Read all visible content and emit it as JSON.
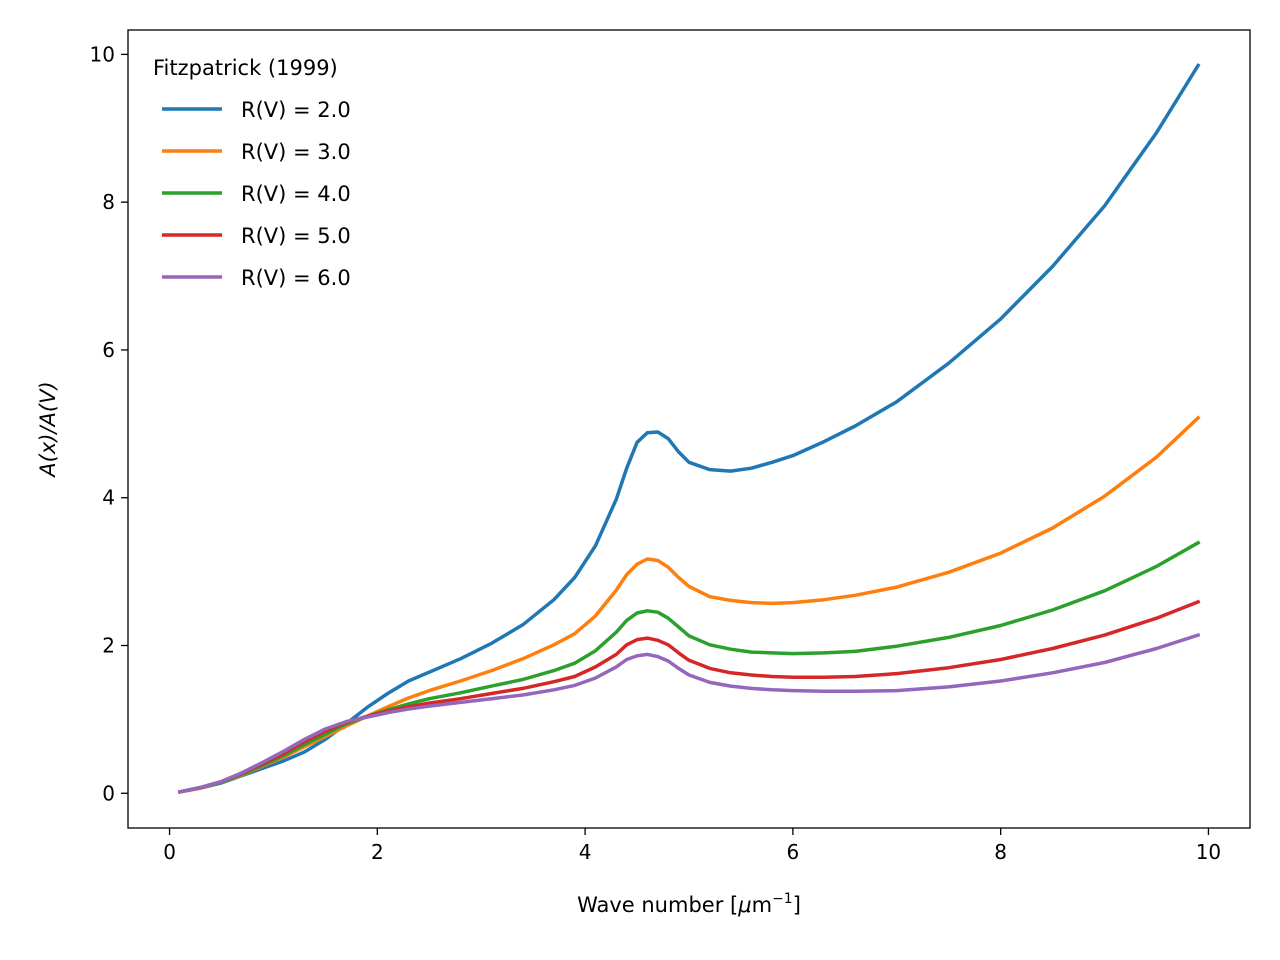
{
  "chart_data": {
    "type": "line",
    "xlabel": "Wave number",
    "xlabel_unit_prefix": "[",
    "xlabel_unit_mu": "μ",
    "xlabel_unit_m": "m",
    "xlabel_unit_exp": "−1",
    "xlabel_unit_suffix": "]",
    "ylabel": "A(x)/A(V)",
    "xlim": [
      -0.4,
      10.4
    ],
    "ylim": [
      -0.47,
      10.33
    ],
    "xticks": [
      0,
      2,
      4,
      6,
      8,
      10
    ],
    "xtick_labels": [
      "0",
      "2",
      "4",
      "6",
      "8",
      "10"
    ],
    "yticks": [
      0,
      2,
      4,
      6,
      8,
      10
    ],
    "ytick_labels": [
      "0",
      "2",
      "4",
      "6",
      "8",
      "10"
    ],
    "grid": false,
    "legend": {
      "title": "Fitzpatrick (1999)",
      "placement": "top-left"
    },
    "x": [
      0.1,
      0.3,
      0.5,
      0.7,
      0.9,
      1.1,
      1.3,
      1.5,
      1.7,
      1.9,
      2.1,
      2.3,
      2.5,
      2.8,
      3.1,
      3.4,
      3.7,
      3.9,
      4.1,
      4.3,
      4.4,
      4.5,
      4.6,
      4.7,
      4.8,
      4.9,
      5.0,
      5.2,
      5.4,
      5.6,
      5.8,
      6.0,
      6.3,
      6.6,
      7.0,
      7.5,
      8.0,
      8.5,
      9.0,
      9.5,
      9.9
    ],
    "series": [
      {
        "name": "R(V) = 2.0",
        "color": "#1f77b4",
        "values": [
          0.02,
          0.07,
          0.14,
          0.24,
          0.34,
          0.44,
          0.56,
          0.73,
          0.94,
          1.16,
          1.35,
          1.52,
          1.64,
          1.82,
          2.03,
          2.28,
          2.62,
          2.92,
          3.35,
          3.98,
          4.4,
          4.75,
          4.88,
          4.89,
          4.8,
          4.62,
          4.48,
          4.38,
          4.36,
          4.4,
          4.48,
          4.57,
          4.76,
          4.97,
          5.3,
          5.82,
          6.42,
          7.13,
          7.95,
          8.94,
          9.85
        ]
      },
      {
        "name": "R(V) = 3.0",
        "color": "#ff7f0e",
        "values": [
          0.02,
          0.07,
          0.15,
          0.25,
          0.37,
          0.49,
          0.63,
          0.77,
          0.91,
          1.04,
          1.17,
          1.29,
          1.39,
          1.52,
          1.66,
          1.82,
          2.01,
          2.16,
          2.4,
          2.75,
          2.96,
          3.1,
          3.17,
          3.15,
          3.06,
          2.92,
          2.8,
          2.66,
          2.61,
          2.58,
          2.57,
          2.58,
          2.62,
          2.68,
          2.79,
          2.99,
          3.25,
          3.59,
          4.02,
          4.55,
          5.08
        ]
      },
      {
        "name": "R(V) = 4.0",
        "color": "#2ca02c",
        "values": [
          0.02,
          0.08,
          0.15,
          0.26,
          0.38,
          0.51,
          0.66,
          0.8,
          0.94,
          1.04,
          1.13,
          1.21,
          1.28,
          1.36,
          1.45,
          1.54,
          1.66,
          1.76,
          1.93,
          2.18,
          2.34,
          2.44,
          2.47,
          2.45,
          2.37,
          2.25,
          2.13,
          2.01,
          1.95,
          1.91,
          1.9,
          1.89,
          1.9,
          1.92,
          1.99,
          2.11,
          2.27,
          2.48,
          2.74,
          3.07,
          3.39
        ]
      },
      {
        "name": "R(V) = 5.0",
        "color": "#d62728",
        "values": [
          0.02,
          0.08,
          0.16,
          0.27,
          0.4,
          0.54,
          0.7,
          0.84,
          0.96,
          1.04,
          1.11,
          1.17,
          1.22,
          1.28,
          1.35,
          1.42,
          1.51,
          1.58,
          1.71,
          1.88,
          2.01,
          2.08,
          2.1,
          2.07,
          2.01,
          1.9,
          1.8,
          1.69,
          1.63,
          1.6,
          1.58,
          1.57,
          1.57,
          1.58,
          1.62,
          1.7,
          1.81,
          1.96,
          2.14,
          2.37,
          2.59
        ]
      },
      {
        "name": "R(V) = 6.0",
        "color": "#9467bd",
        "values": [
          0.02,
          0.08,
          0.16,
          0.28,
          0.42,
          0.57,
          0.73,
          0.87,
          0.97,
          1.03,
          1.09,
          1.14,
          1.18,
          1.23,
          1.28,
          1.33,
          1.4,
          1.46,
          1.56,
          1.71,
          1.81,
          1.86,
          1.88,
          1.85,
          1.79,
          1.69,
          1.6,
          1.5,
          1.45,
          1.42,
          1.4,
          1.39,
          1.38,
          1.38,
          1.39,
          1.44,
          1.52,
          1.63,
          1.77,
          1.96,
          2.14
        ]
      }
    ]
  }
}
